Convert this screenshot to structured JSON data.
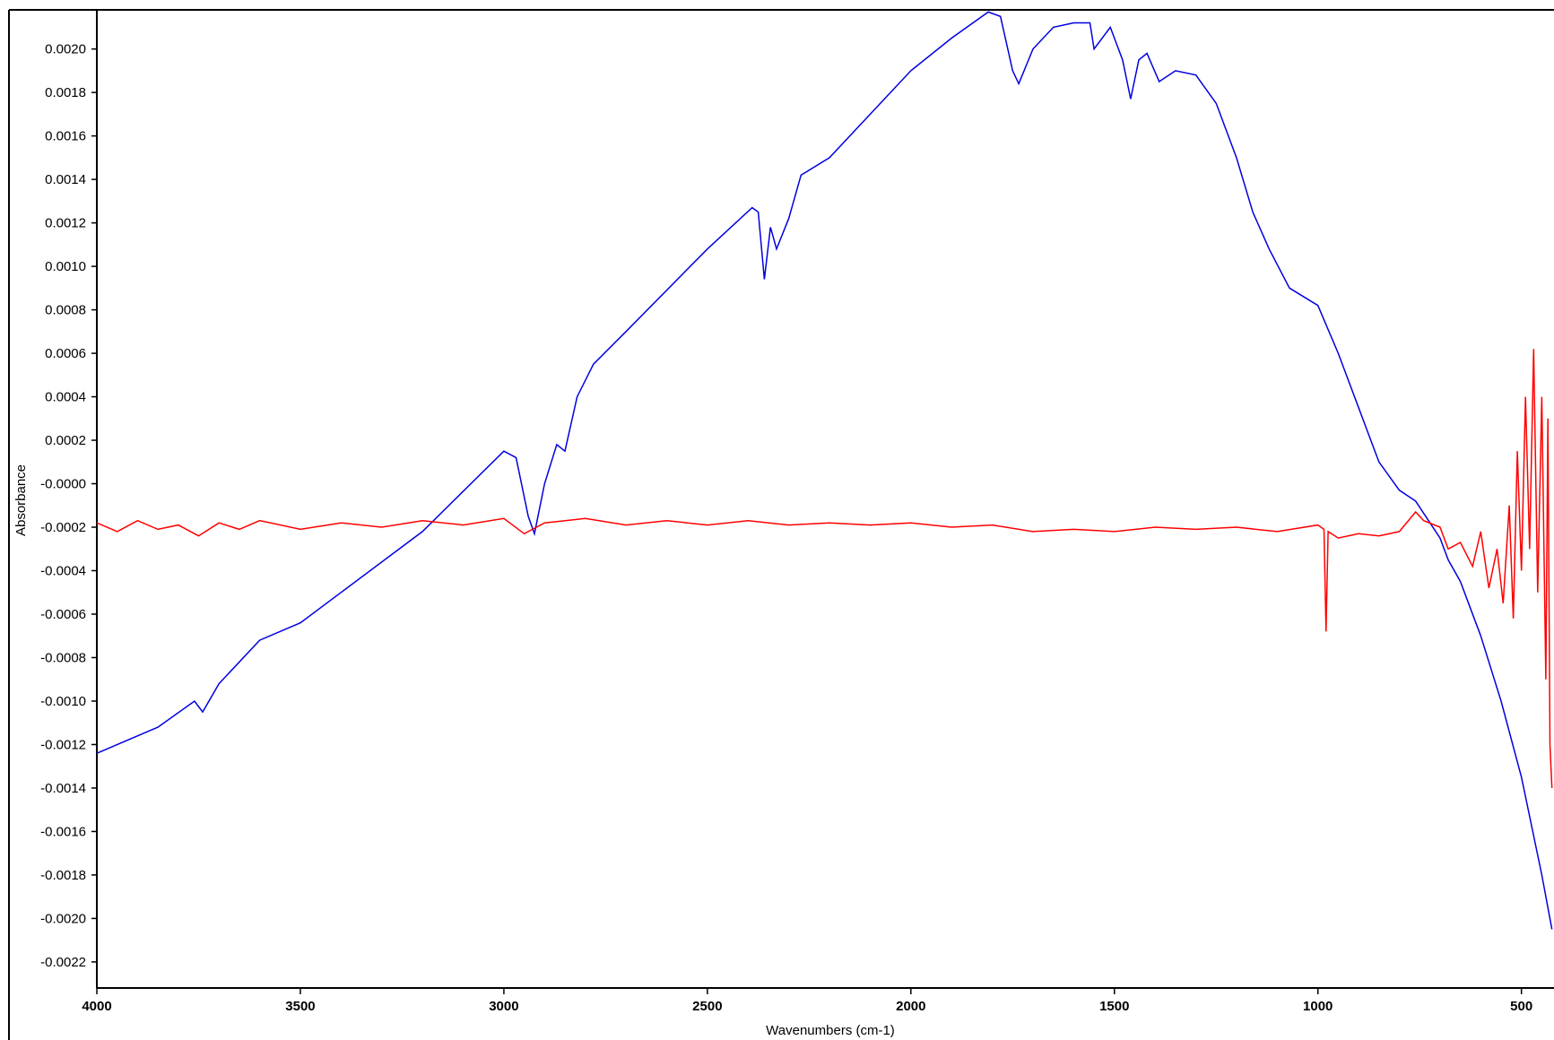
{
  "chart_data": {
    "type": "line",
    "xlabel": "Wavenumbers (cm-1)",
    "ylabel": "Absorbance",
    "xlim": [
      4000,
      420
    ],
    "ylim": [
      -0.00232,
      0.00218
    ],
    "xticks": [
      4000,
      3500,
      3000,
      2500,
      2000,
      1500,
      1000,
      500
    ],
    "yticks": [
      {
        "value": 0.002,
        "label": "0.0020"
      },
      {
        "value": 0.0018,
        "label": "0.0018"
      },
      {
        "value": 0.0016,
        "label": "0.0016"
      },
      {
        "value": 0.0014,
        "label": "0.0014"
      },
      {
        "value": 0.0012,
        "label": "0.0012"
      },
      {
        "value": 0.001,
        "label": "0.0010"
      },
      {
        "value": 0.0008,
        "label": "0.0008"
      },
      {
        "value": 0.0006,
        "label": "0.0006"
      },
      {
        "value": 0.0004,
        "label": "0.0004"
      },
      {
        "value": 0.0002,
        "label": "0.0002"
      },
      {
        "value": 0,
        "label": "-0.0000"
      },
      {
        "value": -0.0002,
        "label": "-0.0002"
      },
      {
        "value": -0.0004,
        "label": "-0.0004"
      },
      {
        "value": -0.0006,
        "label": "-0.0006"
      },
      {
        "value": -0.0008,
        "label": "-0.0008"
      },
      {
        "value": -0.001,
        "label": "-0.0010"
      },
      {
        "value": -0.0012,
        "label": "-0.0012"
      },
      {
        "value": -0.0014,
        "label": "-0.0014"
      },
      {
        "value": -0.0016,
        "label": "-0.0016"
      },
      {
        "value": -0.0018,
        "label": "-0.0018"
      },
      {
        "value": -0.002,
        "label": "-0.0020"
      },
      {
        "value": -0.0022,
        "label": "-0.0022"
      }
    ],
    "series": [
      {
        "color": "#0000e0",
        "x": [
          4000,
          3850,
          3760,
          3740,
          3700,
          3600,
          3500,
          3400,
          3200,
          3000,
          2970,
          2940,
          2925,
          2900,
          2870,
          2850,
          2820,
          2780,
          2700,
          2500,
          2390,
          2375,
          2360,
          2345,
          2330,
          2300,
          2270,
          2200,
          2100,
          2000,
          1900,
          1810,
          1780,
          1750,
          1735,
          1700,
          1650,
          1600,
          1560,
          1550,
          1510,
          1480,
          1460,
          1440,
          1420,
          1390,
          1350,
          1300,
          1250,
          1200,
          1160,
          1120,
          1070,
          1000,
          950,
          900,
          850,
          800,
          760,
          700,
          680,
          650,
          600,
          550,
          500,
          450,
          425
        ],
        "values": [
          -0.00124,
          -0.00112,
          -0.001,
          -0.00105,
          -0.00092,
          -0.00072,
          -0.00064,
          -0.0005,
          -0.00022,
          0.00015,
          0.00012,
          -0.00015,
          -0.00023,
          0.0,
          0.00018,
          0.00015,
          0.0004,
          0.00055,
          0.0007,
          0.00108,
          0.00127,
          0.00125,
          0.00094,
          0.00118,
          0.00108,
          0.00122,
          0.00142,
          0.0015,
          0.0017,
          0.0019,
          0.00205,
          0.00217,
          0.00215,
          0.0019,
          0.00184,
          0.002,
          0.0021,
          0.00212,
          0.00212,
          0.002,
          0.0021,
          0.00195,
          0.00177,
          0.00195,
          0.00198,
          0.00185,
          0.0019,
          0.00188,
          0.00175,
          0.0015,
          0.00125,
          0.00108,
          0.0009,
          0.00082,
          0.0006,
          0.00035,
          0.0001,
          -3e-05,
          -8e-05,
          -0.00025,
          -0.00035,
          -0.00045,
          -0.0007,
          -0.001,
          -0.00135,
          -0.0018,
          -0.00205
        ]
      },
      {
        "color": "#ff0000",
        "x": [
          4000,
          3950,
          3900,
          3850,
          3800,
          3750,
          3700,
          3650,
          3600,
          3500,
          3400,
          3300,
          3200,
          3100,
          3000,
          2950,
          2900,
          2800,
          2700,
          2600,
          2500,
          2400,
          2300,
          2200,
          2100,
          2000,
          1900,
          1800,
          1700,
          1600,
          1500,
          1400,
          1300,
          1200,
          1100,
          1000,
          985,
          980,
          975,
          950,
          900,
          850,
          800,
          760,
          740,
          700,
          680,
          650,
          620,
          600,
          580,
          560,
          545,
          530,
          520,
          510,
          500,
          490,
          480,
          470,
          460,
          450,
          440,
          435,
          430,
          425
        ],
        "values": [
          -0.00018,
          -0.00022,
          -0.00017,
          -0.00021,
          -0.00019,
          -0.00024,
          -0.00018,
          -0.00021,
          -0.00017,
          -0.00021,
          -0.00018,
          -0.0002,
          -0.00017,
          -0.00019,
          -0.00016,
          -0.00023,
          -0.00018,
          -0.00016,
          -0.00019,
          -0.00017,
          -0.00019,
          -0.00017,
          -0.00019,
          -0.00018,
          -0.00019,
          -0.00018,
          -0.0002,
          -0.00019,
          -0.00022,
          -0.00021,
          -0.00022,
          -0.0002,
          -0.00021,
          -0.0002,
          -0.00022,
          -0.00019,
          -0.00021,
          -0.00068,
          -0.00022,
          -0.00025,
          -0.00023,
          -0.00024,
          -0.00022,
          -0.00013,
          -0.00017,
          -0.0002,
          -0.0003,
          -0.00027,
          -0.00038,
          -0.00022,
          -0.00048,
          -0.0003,
          -0.00055,
          -0.0001,
          -0.00062,
          0.00015,
          -0.0004,
          0.0004,
          -0.0003,
          0.00062,
          -0.0005,
          0.0004,
          -0.0009,
          0.0003,
          -0.0012,
          -0.0014
        ]
      }
    ]
  }
}
